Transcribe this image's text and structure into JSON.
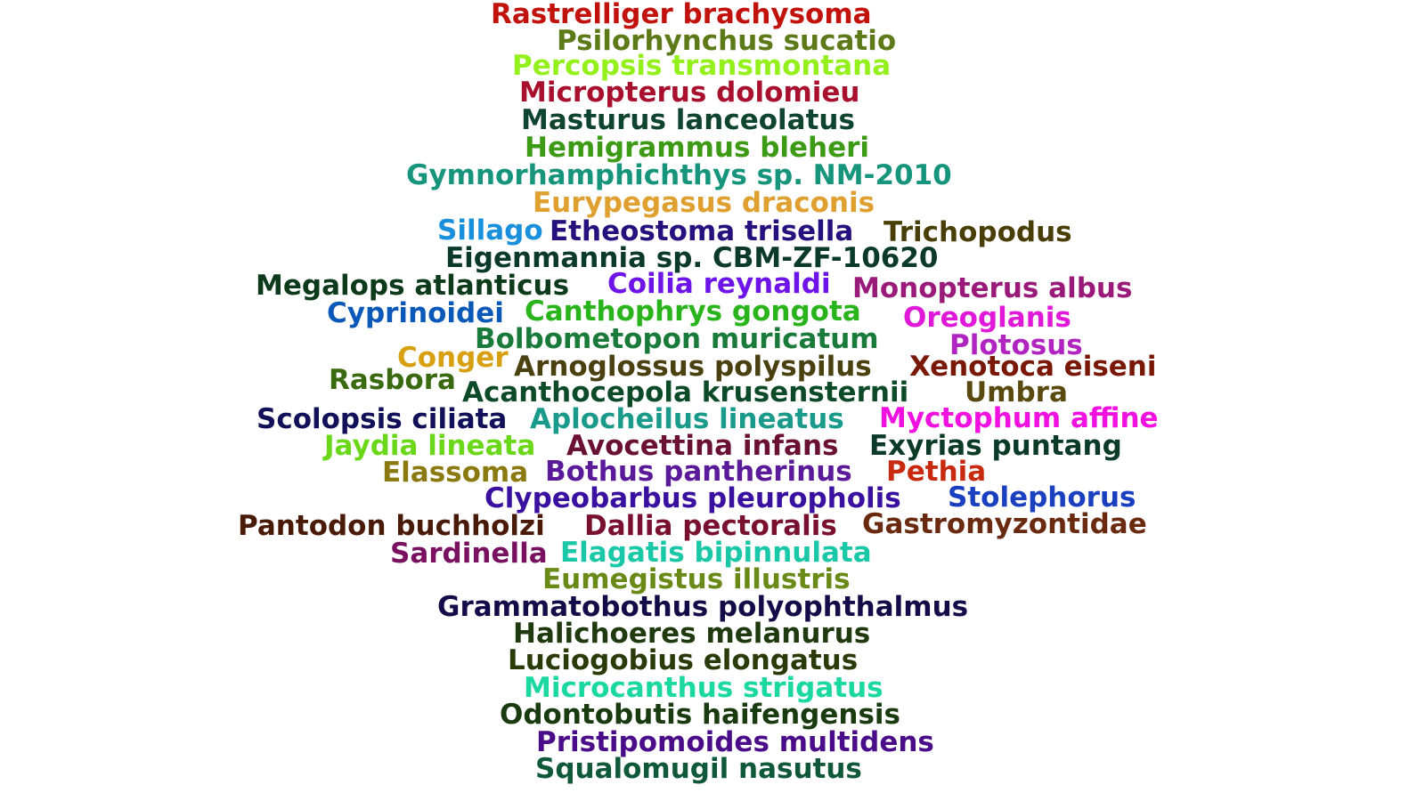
{
  "words": [
    {
      "text": "Rastrelliger brachysoma",
      "color": "#c1130c"
    },
    {
      "text": "Psilorhynchus sucatio",
      "color": "#5d7a18"
    },
    {
      "text": "Percopsis transmontana",
      "color": "#94f01a"
    },
    {
      "text": "Micropterus dolomieu",
      "color": "#a8102e"
    },
    {
      "text": "Masturus lanceolatus",
      "color": "#0f4430"
    },
    {
      "text": "Hemigrammus bleheri",
      "color": "#3c9a14"
    },
    {
      "text": "Gymnorhamphichthys sp. NM-2010",
      "color": "#17957c"
    },
    {
      "text": "Eurypegasus draconis",
      "color": "#e0a030"
    },
    {
      "text": "Sillago",
      "color": "#1a8fdc"
    },
    {
      "text": "Etheostoma trisella",
      "color": "#25107e"
    },
    {
      "text": "Trichopodus",
      "color": "#4a3e08"
    },
    {
      "text": "Eigenmannia sp. CBM-ZF-10620",
      "color": "#0c3a2a"
    },
    {
      "text": "Megalops atlanticus",
      "color": "#0c3a1a"
    },
    {
      "text": "Coilia reynaldi",
      "color": "#6e14e8"
    },
    {
      "text": "Monopterus albus",
      "color": "#9a1a7a"
    },
    {
      "text": "Cyprinoidei",
      "color": "#0a58b8"
    },
    {
      "text": "Canthophrys gongota",
      "color": "#28b41a"
    },
    {
      "text": "Oreoglanis",
      "color": "#e018d8"
    },
    {
      "text": "Bolbometopon muricatum",
      "color": "#1a7a3a"
    },
    {
      "text": "Plotosus",
      "color": "#b024c0"
    },
    {
      "text": "Conger",
      "color": "#d8a010"
    },
    {
      "text": "Arnoglossus polyspilus",
      "color": "#4a4010"
    },
    {
      "text": "Xenotoca eiseni",
      "color": "#7a1808"
    },
    {
      "text": "Rasbora",
      "color": "#3a6a10"
    },
    {
      "text": "Acanthocepola krusensternii",
      "color": "#0c4a28"
    },
    {
      "text": "Umbra",
      "color": "#5a4a10"
    },
    {
      "text": "Scolopsis ciliata",
      "color": "#121058"
    },
    {
      "text": "Aplocheilus lineatus",
      "color": "#1a9a8a"
    },
    {
      "text": "Myctophum affine",
      "color": "#f010e0"
    },
    {
      "text": "Jaydia lineata",
      "color": "#6ad818"
    },
    {
      "text": "Avocettina infans",
      "color": "#6a1030"
    },
    {
      "text": "Exyrias puntang",
      "color": "#0c3a28"
    },
    {
      "text": "Elassoma",
      "color": "#8a7a10"
    },
    {
      "text": "Bothus pantherinus",
      "color": "#5a1a9a"
    },
    {
      "text": "Pethia",
      "color": "#c82a10"
    },
    {
      "text": "Clypeobarbus pleuropholis",
      "color": "#3a10a0"
    },
    {
      "text": "Stolephorus",
      "color": "#1a40c0"
    },
    {
      "text": "Pantodon buchholzi",
      "color": "#4a1a08"
    },
    {
      "text": "Dallia pectoralis",
      "color": "#7a1030"
    },
    {
      "text": "Gastromyzontidae",
      "color": "#6a2a10"
    },
    {
      "text": "Sardinella",
      "color": "#7a1060"
    },
    {
      "text": "Elagatis bipinnulata",
      "color": "#1ac8a8"
    },
    {
      "text": "Eumegistus illustris",
      "color": "#6a8a18"
    },
    {
      "text": "Grammatobothus polyophthalmus",
      "color": "#140c48"
    },
    {
      "text": "Halichoeres melanurus",
      "color": "#203a10"
    },
    {
      "text": "Luciogobius elongatus",
      "color": "#2a3a08"
    },
    {
      "text": "Microcanthus strigatus",
      "color": "#1ad8a0"
    },
    {
      "text": "Odontobutis haifengensis",
      "color": "#1a3a10"
    },
    {
      "text": "Pristipomoides multidens",
      "color": "#4a0c88"
    },
    {
      "text": "Squalomugil nasutus",
      "color": "#10583a"
    }
  ]
}
